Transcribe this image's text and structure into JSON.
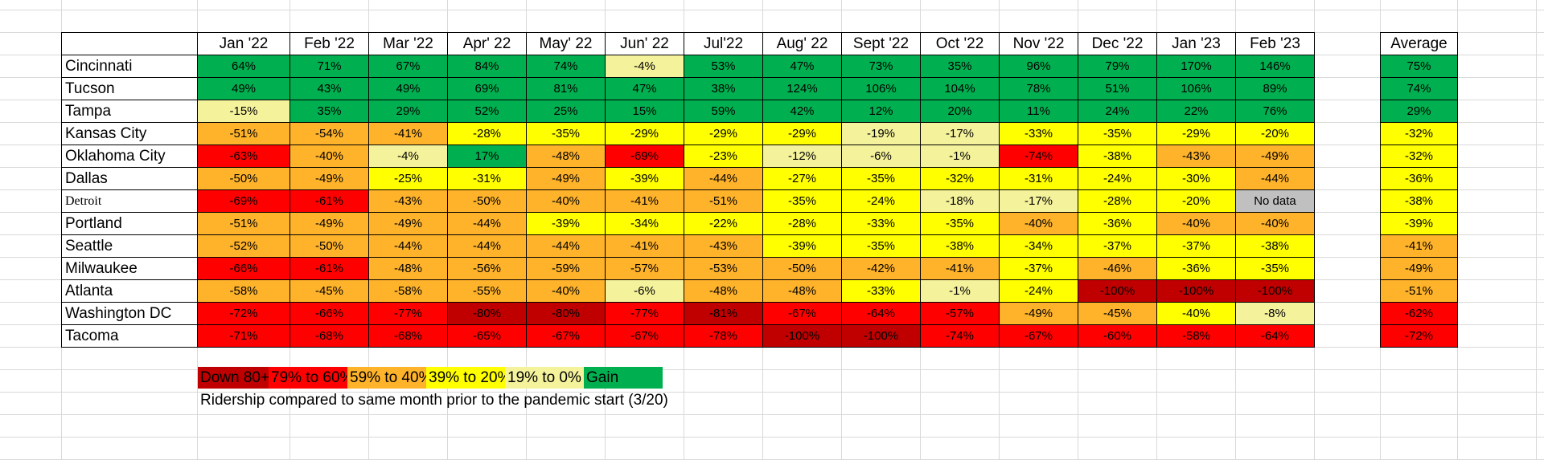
{
  "header": {
    "corner": "",
    "months": [
      "Jan '22",
      "Feb '22",
      "Mar '22",
      "Apr' 22",
      "May' 22",
      "Jun' 22",
      "Jul'22",
      "Aug' 22",
      "Sept '22",
      "Oct '22",
      "Nov '22",
      "Dec '22",
      "Jan '23",
      "Feb '23"
    ],
    "average_label": "Average"
  },
  "colors": {
    "c-dred": "#c00000",
    "c-red": "#ff0000",
    "c-orange": "#ffb32b",
    "c-yellow": "#ffff00",
    "c-lyellow": "#f5f29c",
    "c-green": "#00b050",
    "c-gray": "#c0c0c0"
  },
  "rows": [
    {
      "city": "Cincinnati",
      "values": [
        "64%",
        "71%",
        "67%",
        "84%",
        "74%",
        "-4%",
        "53%",
        "47%",
        "73%",
        "35%",
        "96%",
        "79%",
        "170%",
        "146%"
      ],
      "colors": [
        "c-green",
        "c-green",
        "c-green",
        "c-green",
        "c-green",
        "c-lyellow",
        "c-green",
        "c-green",
        "c-green",
        "c-green",
        "c-green",
        "c-green",
        "c-green",
        "c-green"
      ],
      "average": "75%",
      "average_color": "c-green"
    },
    {
      "city": "Tucson",
      "values": [
        "49%",
        "43%",
        "49%",
        "69%",
        "81%",
        "47%",
        "38%",
        "124%",
        "106%",
        "104%",
        "78%",
        "51%",
        "106%",
        "89%"
      ],
      "colors": [
        "c-green",
        "c-green",
        "c-green",
        "c-green",
        "c-green",
        "c-green",
        "c-green",
        "c-green",
        "c-green",
        "c-green",
        "c-green",
        "c-green",
        "c-green",
        "c-green"
      ],
      "average": "74%",
      "average_color": "c-green"
    },
    {
      "city": "Tampa",
      "values": [
        "-15%",
        "35%",
        "29%",
        "52%",
        "25%",
        "15%",
        "59%",
        "42%",
        "12%",
        "20%",
        "11%",
        "24%",
        "22%",
        "76%"
      ],
      "colors": [
        "c-lyellow",
        "c-green",
        "c-green",
        "c-green",
        "c-green",
        "c-green",
        "c-green",
        "c-green",
        "c-green",
        "c-green",
        "c-green",
        "c-green",
        "c-green",
        "c-green"
      ],
      "average": "29%",
      "average_color": "c-green"
    },
    {
      "city": "Kansas City",
      "values": [
        "-51%",
        "-54%",
        "-41%",
        "-28%",
        "-35%",
        "-29%",
        "-29%",
        "-29%",
        "-19%",
        "-17%",
        "-33%",
        "-35%",
        "-29%",
        "-20%"
      ],
      "colors": [
        "c-orange",
        "c-orange",
        "c-orange",
        "c-yellow",
        "c-yellow",
        "c-yellow",
        "c-yellow",
        "c-yellow",
        "c-lyellow",
        "c-lyellow",
        "c-yellow",
        "c-yellow",
        "c-yellow",
        "c-yellow"
      ],
      "average": "-32%",
      "average_color": "c-yellow"
    },
    {
      "city": "Oklahoma City",
      "values": [
        "-63%",
        "-40%",
        "-4%",
        "17%",
        "-48%",
        "-69%",
        "-23%",
        "-12%",
        "-6%",
        "-1%",
        "-74%",
        "-38%",
        "-43%",
        "-49%"
      ],
      "colors": [
        "c-red",
        "c-orange",
        "c-lyellow",
        "c-green",
        "c-orange",
        "c-red",
        "c-yellow",
        "c-lyellow",
        "c-lyellow",
        "c-lyellow",
        "c-red",
        "c-yellow",
        "c-orange",
        "c-orange"
      ],
      "average": "-32%",
      "average_color": "c-yellow"
    },
    {
      "city": "Dallas",
      "values": [
        "-50%",
        "-49%",
        "-25%",
        "-31%",
        "-49%",
        "-39%",
        "-44%",
        "-27%",
        "-35%",
        "-32%",
        "-31%",
        "-24%",
        "-30%",
        "-44%"
      ],
      "colors": [
        "c-orange",
        "c-orange",
        "c-yellow",
        "c-yellow",
        "c-orange",
        "c-yellow",
        "c-orange",
        "c-yellow",
        "c-yellow",
        "c-yellow",
        "c-yellow",
        "c-yellow",
        "c-yellow",
        "c-orange"
      ],
      "average": "-36%",
      "average_color": "c-yellow"
    },
    {
      "city": "Detroit",
      "serif": true,
      "values": [
        "-69%",
        "-61%",
        "-43%",
        "-50%",
        "-40%",
        "-41%",
        "-51%",
        "-35%",
        "-24%",
        "-18%",
        "-17%",
        "-28%",
        "-20%",
        "No data"
      ],
      "colors": [
        "c-red",
        "c-red",
        "c-orange",
        "c-orange",
        "c-orange",
        "c-orange",
        "c-orange",
        "c-yellow",
        "c-yellow",
        "c-lyellow",
        "c-lyellow",
        "c-yellow",
        "c-yellow",
        "c-gray"
      ],
      "average": "-38%",
      "average_color": "c-yellow"
    },
    {
      "city": "Portland",
      "values": [
        "-51%",
        "-49%",
        "-49%",
        "-44%",
        "-39%",
        "-34%",
        "-22%",
        "-28%",
        "-33%",
        "-35%",
        "-40%",
        "-36%",
        "-40%",
        "-40%"
      ],
      "colors": [
        "c-orange",
        "c-orange",
        "c-orange",
        "c-orange",
        "c-yellow",
        "c-yellow",
        "c-yellow",
        "c-yellow",
        "c-yellow",
        "c-yellow",
        "c-orange",
        "c-yellow",
        "c-orange",
        "c-orange"
      ],
      "average": "-39%",
      "average_color": "c-yellow"
    },
    {
      "city": "Seattle",
      "values": [
        "-52%",
        "-50%",
        "-44%",
        "-44%",
        "-44%",
        "-41%",
        "-43%",
        "-39%",
        "-35%",
        "-38%",
        "-34%",
        "-37%",
        "-37%",
        "-38%"
      ],
      "colors": [
        "c-orange",
        "c-orange",
        "c-orange",
        "c-orange",
        "c-orange",
        "c-orange",
        "c-orange",
        "c-yellow",
        "c-yellow",
        "c-yellow",
        "c-yellow",
        "c-yellow",
        "c-yellow",
        "c-yellow"
      ],
      "average": "-41%",
      "average_color": "c-orange"
    },
    {
      "city": "Milwaukee",
      "values": [
        "-66%",
        "-61%",
        "-48%",
        "-56%",
        "-59%",
        "-57%",
        "-53%",
        "-50%",
        "-42%",
        "-41%",
        "-37%",
        "-46%",
        "-36%",
        "-35%"
      ],
      "colors": [
        "c-red",
        "c-red",
        "c-orange",
        "c-orange",
        "c-orange",
        "c-orange",
        "c-orange",
        "c-orange",
        "c-orange",
        "c-orange",
        "c-yellow",
        "c-orange",
        "c-yellow",
        "c-yellow"
      ],
      "average": "-49%",
      "average_color": "c-orange"
    },
    {
      "city": "Atlanta",
      "values": [
        "-58%",
        "-45%",
        "-58%",
        "-55%",
        "-40%",
        "-6%",
        "-48%",
        "-48%",
        "-33%",
        "-1%",
        "-24%",
        "-100%",
        "-100%",
        "-100%"
      ],
      "colors": [
        "c-orange",
        "c-orange",
        "c-orange",
        "c-orange",
        "c-orange",
        "c-lyellow",
        "c-orange",
        "c-orange",
        "c-yellow",
        "c-lyellow",
        "c-yellow",
        "c-dred",
        "c-dred",
        "c-dred"
      ],
      "average": "-51%",
      "average_color": "c-orange"
    },
    {
      "city": "Washington DC",
      "values": [
        "-72%",
        "-66%",
        "-77%",
        "-80%",
        "-80%",
        "-77%",
        "-81%",
        "-67%",
        "-64%",
        "-57%",
        "-49%",
        "-45%",
        "-40%",
        "-8%"
      ],
      "colors": [
        "c-red",
        "c-red",
        "c-red",
        "c-dred",
        "c-dred",
        "c-red",
        "c-dred",
        "c-red",
        "c-red",
        "c-red",
        "c-orange",
        "c-orange",
        "c-yellow",
        "c-lyellow"
      ],
      "average": "-62%",
      "average_color": "c-red"
    },
    {
      "city": "Tacoma",
      "values": [
        "-71%",
        "-68%",
        "-68%",
        "-65%",
        "-67%",
        "-67%",
        "-78%",
        "-100%",
        "-100%",
        "-74%",
        "-67%",
        "-60%",
        "-58%",
        "-64%"
      ],
      "colors": [
        "c-red",
        "c-red",
        "c-red",
        "c-red",
        "c-red",
        "c-red",
        "c-red",
        "c-dred",
        "c-dred",
        "c-red",
        "c-red",
        "c-red",
        "c-red",
        "c-red"
      ],
      "average": "-72%",
      "average_color": "c-red"
    }
  ],
  "legend": [
    {
      "label": "Down 80+%",
      "color": "c-dred"
    },
    {
      "label": "79% to 60%",
      "color": "c-red"
    },
    {
      "label": "59% to 40%",
      "color": "c-orange"
    },
    {
      "label": "39% to 20%",
      "color": "c-yellow"
    },
    {
      "label": "19% to 0%",
      "color": "c-lyellow"
    },
    {
      "label": "Gain",
      "color": "c-green"
    }
  ],
  "caption": "Ridership compared to same month prior to the pandemic start (3/20)"
}
